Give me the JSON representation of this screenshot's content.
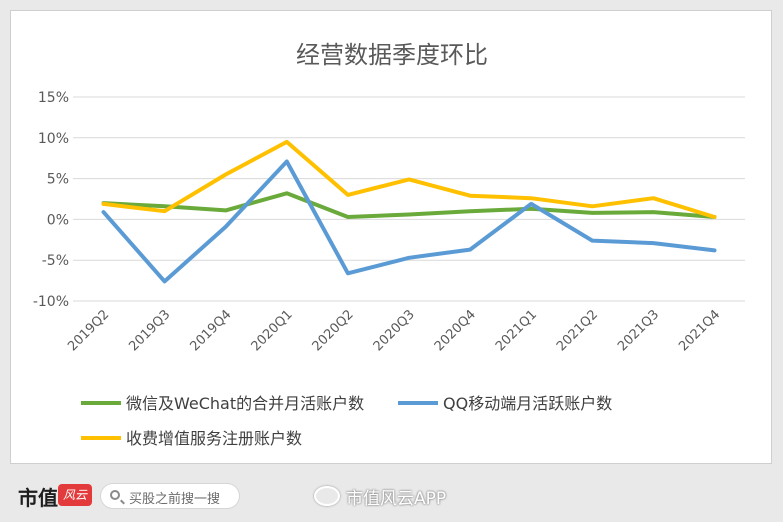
{
  "chart_data": {
    "type": "line",
    "title": "经营数据季度环比",
    "categories": [
      "2019Q2",
      "2019Q3",
      "2019Q4",
      "2020Q1",
      "2020Q2",
      "2020Q3",
      "2020Q4",
      "2021Q1",
      "2021Q2",
      "2021Q3",
      "2021Q4"
    ],
    "y_ticks": [
      "15%",
      "10%",
      "5%",
      "0%",
      "-5%",
      "-10%"
    ],
    "ylim": [
      -10,
      15
    ],
    "grid": true,
    "legend_position": "bottom",
    "series": [
      {
        "name": "微信及WeChat的合并月活账户数",
        "color": "#6aaa3a",
        "values": [
          2.0,
          1.6,
          1.1,
          3.2,
          0.3,
          0.6,
          1.0,
          1.3,
          0.8,
          0.9,
          0.3
        ]
      },
      {
        "name": "QQ移动端月活跃账户数",
        "color": "#5b9bd5",
        "values": [
          0.9,
          -7.6,
          -0.9,
          7.1,
          -6.6,
          -4.7,
          -3.7,
          1.9,
          -2.6,
          -2.9,
          -3.8
        ]
      },
      {
        "name": "收费增值服务注册账户数",
        "color": "#ffc000",
        "values": [
          1.9,
          1.0,
          5.5,
          9.5,
          3.0,
          4.9,
          2.9,
          2.6,
          1.6,
          2.6,
          0.3
        ]
      }
    ]
  },
  "footer": {
    "brand": "市值",
    "brand_mark": "风云",
    "search_placeholder": "买股之前搜一搜",
    "weibo_credit": "市值风云APP"
  }
}
